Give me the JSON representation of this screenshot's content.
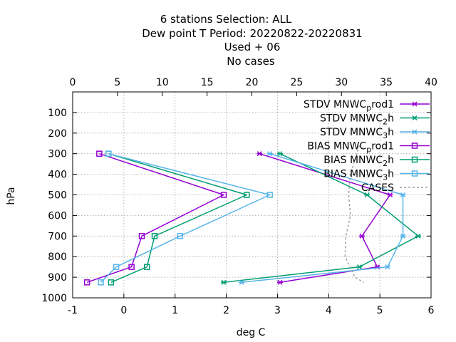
{
  "chart_data": {
    "type": "line",
    "title_lines": [
      "6 stations Selection: ALL",
      "Dew point T  Period: 20220822-20220831",
      "Used   + 06",
      "No cases"
    ],
    "xlabel": "deg C",
    "ylabel": "hPa",
    "xlim": [
      -1,
      6
    ],
    "x2lim": [
      0,
      40
    ],
    "ylim": [
      1000,
      0
    ],
    "y_reversed": true,
    "xticks": [
      "-1",
      "0",
      "1",
      "2",
      "3",
      "4",
      "5",
      "6"
    ],
    "x2ticks": [
      "0",
      "5",
      "10",
      "15",
      "20",
      "25",
      "30",
      "35",
      "40"
    ],
    "yticks": [
      "100",
      "200",
      "300",
      "400",
      "500",
      "600",
      "700",
      "800",
      "900",
      "1000"
    ],
    "grid": true,
    "legend_position": "top-right",
    "series": [
      {
        "name": "STDV MNWC_prod1",
        "legend": {
          "pre": "STDV MNWC",
          "sub": "p",
          "post": "rod1"
        },
        "color": "#9400d3",
        "marker": "star",
        "axis": "bottom",
        "points": [
          [
            2.65,
            300
          ],
          [
            5.2,
            500
          ],
          [
            4.65,
            700
          ],
          [
            4.95,
            850
          ],
          [
            3.05,
            925
          ]
        ]
      },
      {
        "name": "STDV MNWC_2h",
        "legend": {
          "pre": "STDV MNWC",
          "sub": "2",
          "post": "h"
        },
        "color": "#009e73",
        "marker": "star",
        "axis": "bottom",
        "points": [
          [
            3.05,
            300
          ],
          [
            4.75,
            500
          ],
          [
            5.75,
            700
          ],
          [
            4.6,
            850
          ],
          [
            1.95,
            925
          ]
        ]
      },
      {
        "name": "STDV MNWC_3h",
        "legend": {
          "pre": "STDV MNWC",
          "sub": "3",
          "post": "h"
        },
        "color": "#56b4e9",
        "marker": "star",
        "axis": "bottom",
        "points": [
          [
            2.85,
            300
          ],
          [
            5.45,
            500
          ],
          [
            5.45,
            700
          ],
          [
            5.15,
            850
          ],
          [
            2.3,
            925
          ]
        ]
      },
      {
        "name": "BIAS MNWC_prod1",
        "legend": {
          "pre": "BIAS MNWC",
          "sub": "p",
          "post": "rod1"
        },
        "color": "#9400d3",
        "marker": "square",
        "axis": "bottom",
        "points": [
          [
            -0.48,
            300
          ],
          [
            1.95,
            500
          ],
          [
            0.35,
            700
          ],
          [
            0.15,
            850
          ],
          [
            -0.72,
            925
          ]
        ]
      },
      {
        "name": "BIAS MNWC_2h",
        "legend": {
          "pre": "BIAS MNWC",
          "sub": "2",
          "post": "h"
        },
        "color": "#009e73",
        "marker": "square",
        "axis": "bottom",
        "points": [
          [
            -0.3,
            300
          ],
          [
            2.4,
            500
          ],
          [
            0.6,
            700
          ],
          [
            0.45,
            850
          ],
          [
            -0.25,
            925
          ]
        ]
      },
      {
        "name": "BIAS MNWC_3h",
        "legend": {
          "pre": "BIAS MNWC",
          "sub": "3",
          "post": "h"
        },
        "color": "#56b4e9",
        "marker": "square",
        "axis": "bottom",
        "points": [
          [
            -0.3,
            300
          ],
          [
            2.85,
            500
          ],
          [
            1.1,
            700
          ],
          [
            -0.15,
            850
          ],
          [
            -0.45,
            925
          ]
        ]
      },
      {
        "name": "CASES",
        "legend": {
          "pre": "CASES",
          "sub": "",
          "post": ""
        },
        "color": "#a0a0a0",
        "marker": "none",
        "axis": "top",
        "dashed": true,
        "points": [
          [
            32,
            260
          ],
          [
            31,
            400
          ],
          [
            30.8,
            500
          ],
          [
            31,
            600
          ],
          [
            30.5,
            700
          ],
          [
            30.4,
            800
          ],
          [
            31.5,
            900
          ],
          [
            32.5,
            925
          ]
        ]
      }
    ]
  }
}
